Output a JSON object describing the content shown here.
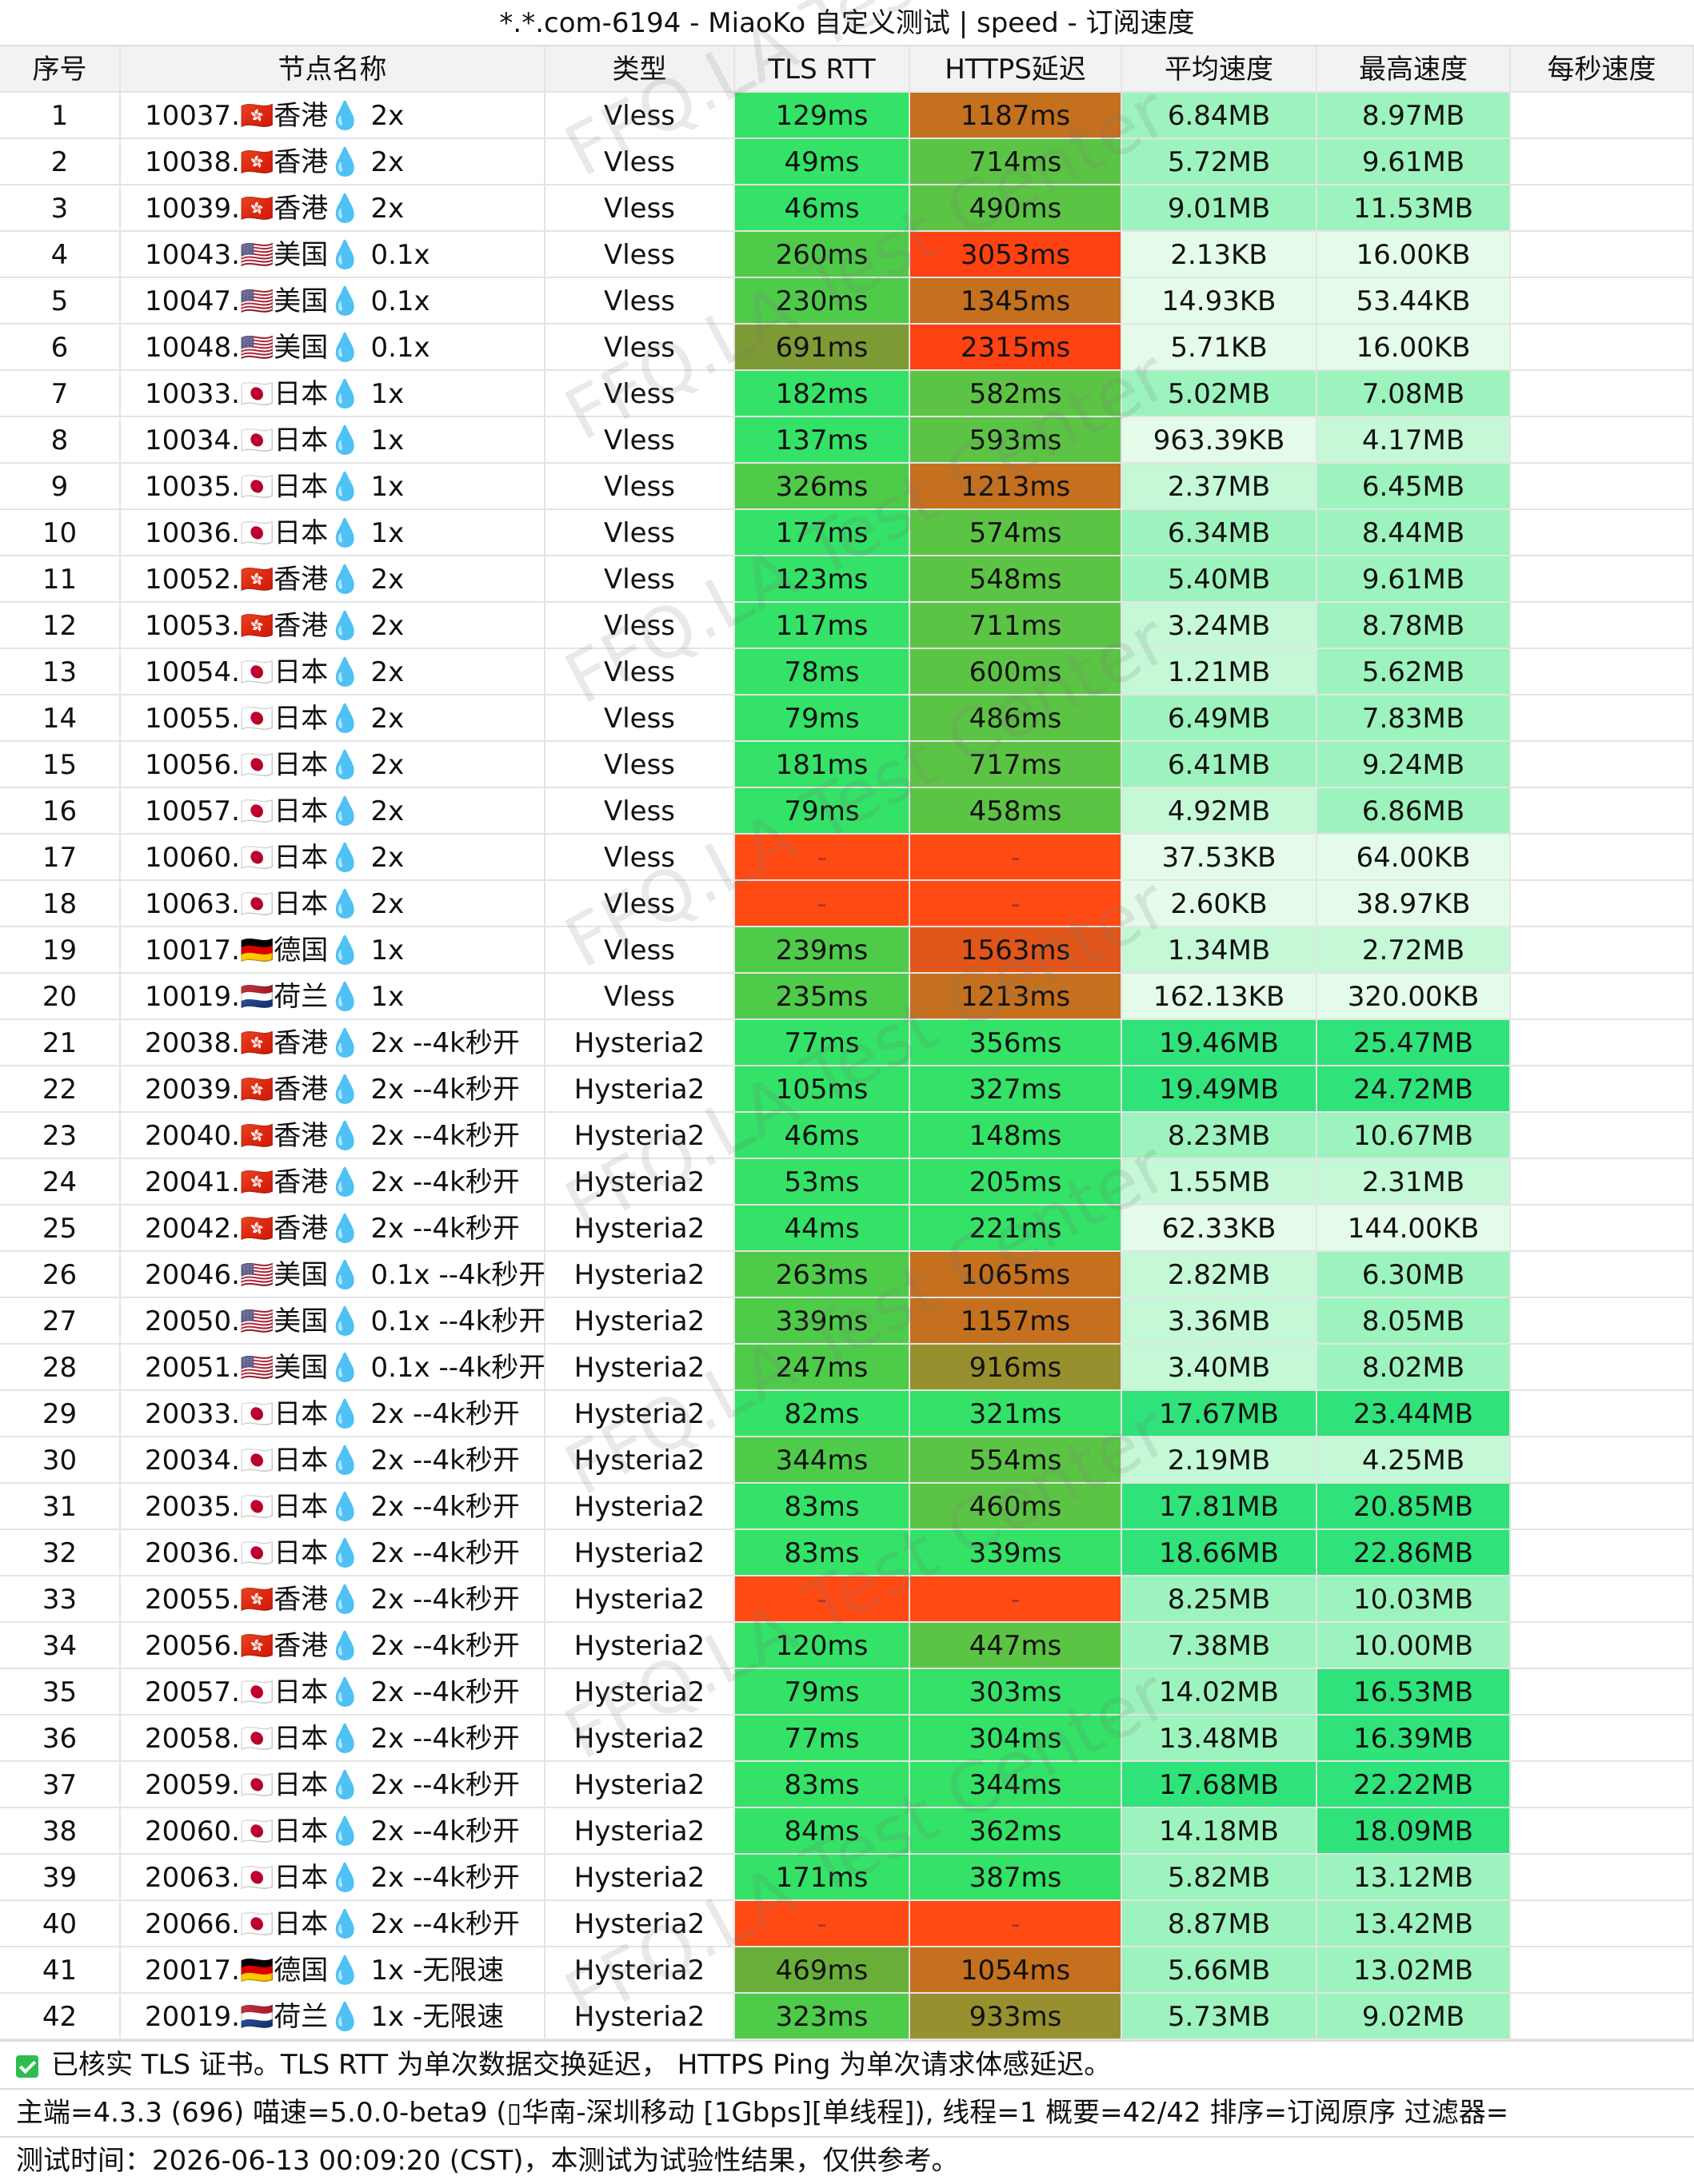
{
  "title": "*.*.com-6194 - MiaoKo 自定义测试 | speed - 订阅速度",
  "watermark": "FFQ.LA Test Center",
  "columns": [
    "序号",
    "节点名称",
    "类型",
    "TLS RTT",
    "HTTPS延迟",
    "平均速度",
    "最高速度",
    "每秒速度"
  ],
  "rows": [
    [
      1,
      "10037.🇭🇰香港💧 2x",
      "Vless",
      "129ms",
      "1187ms",
      "6.84MB",
      "8.97MB"
    ],
    [
      2,
      "10038.🇭🇰香港💧 2x",
      "Vless",
      "49ms",
      "714ms",
      "5.72MB",
      "9.61MB"
    ],
    [
      3,
      "10039.🇭🇰香港💧 2x",
      "Vless",
      "46ms",
      "490ms",
      "9.01MB",
      "11.53MB"
    ],
    [
      4,
      "10043.🇺🇸美国💧 0.1x",
      "Vless",
      "260ms",
      "3053ms",
      "2.13KB",
      "16.00KB"
    ],
    [
      5,
      "10047.🇺🇸美国💧 0.1x",
      "Vless",
      "230ms",
      "1345ms",
      "14.93KB",
      "53.44KB"
    ],
    [
      6,
      "10048.🇺🇸美国💧 0.1x",
      "Vless",
      "691ms",
      "2315ms",
      "5.71KB",
      "16.00KB"
    ],
    [
      7,
      "10033.🇯🇵日本💧 1x",
      "Vless",
      "182ms",
      "582ms",
      "5.02MB",
      "7.08MB"
    ],
    [
      8,
      "10034.🇯🇵日本💧 1x",
      "Vless",
      "137ms",
      "593ms",
      "963.39KB",
      "4.17MB"
    ],
    [
      9,
      "10035.🇯🇵日本💧 1x",
      "Vless",
      "326ms",
      "1213ms",
      "2.37MB",
      "6.45MB"
    ],
    [
      10,
      "10036.🇯🇵日本💧 1x",
      "Vless",
      "177ms",
      "574ms",
      "6.34MB",
      "8.44MB"
    ],
    [
      11,
      "10052.🇭🇰香港💧 2x",
      "Vless",
      "123ms",
      "548ms",
      "5.40MB",
      "9.61MB"
    ],
    [
      12,
      "10053.🇭🇰香港💧 2x",
      "Vless",
      "117ms",
      "711ms",
      "3.24MB",
      "8.78MB"
    ],
    [
      13,
      "10054.🇯🇵日本💧 2x",
      "Vless",
      "78ms",
      "600ms",
      "1.21MB",
      "5.62MB"
    ],
    [
      14,
      "10055.🇯🇵日本💧 2x",
      "Vless",
      "79ms",
      "486ms",
      "6.49MB",
      "7.83MB"
    ],
    [
      15,
      "10056.🇯🇵日本💧 2x",
      "Vless",
      "181ms",
      "717ms",
      "6.41MB",
      "9.24MB"
    ],
    [
      16,
      "10057.🇯🇵日本💧 2x",
      "Vless",
      "79ms",
      "458ms",
      "4.92MB",
      "6.86MB"
    ],
    [
      17,
      "10060.🇯🇵日本💧 2x",
      "Vless",
      "-",
      "-",
      "37.53KB",
      "64.00KB"
    ],
    [
      18,
      "10063.🇯🇵日本💧 2x",
      "Vless",
      "-",
      "-",
      "2.60KB",
      "38.97KB"
    ],
    [
      19,
      "10017.🇩🇪德国💧 1x",
      "Vless",
      "239ms",
      "1563ms",
      "1.34MB",
      "2.72MB"
    ],
    [
      20,
      "10019.🇳🇱荷兰💧 1x",
      "Vless",
      "235ms",
      "1213ms",
      "162.13KB",
      "320.00KB"
    ],
    [
      21,
      "20038.🇭🇰香港💧 2x --4k秒开",
      "Hysteria2",
      "77ms",
      "356ms",
      "19.46MB",
      "25.47MB"
    ],
    [
      22,
      "20039.🇭🇰香港💧 2x --4k秒开",
      "Hysteria2",
      "105ms",
      "327ms",
      "19.49MB",
      "24.72MB"
    ],
    [
      23,
      "20040.🇭🇰香港💧 2x --4k秒开",
      "Hysteria2",
      "46ms",
      "148ms",
      "8.23MB",
      "10.67MB"
    ],
    [
      24,
      "20041.🇭🇰香港💧 2x --4k秒开",
      "Hysteria2",
      "53ms",
      "205ms",
      "1.55MB",
      "2.31MB"
    ],
    [
      25,
      "20042.🇭🇰香港💧 2x --4k秒开",
      "Hysteria2",
      "44ms",
      "221ms",
      "62.33KB",
      "144.00KB"
    ],
    [
      26,
      "20046.🇺🇸美国💧 0.1x --4k秒开",
      "Hysteria2",
      "263ms",
      "1065ms",
      "2.82MB",
      "6.30MB"
    ],
    [
      27,
      "20050.🇺🇸美国💧 0.1x --4k秒开",
      "Hysteria2",
      "339ms",
      "1157ms",
      "3.36MB",
      "8.05MB"
    ],
    [
      28,
      "20051.🇺🇸美国💧 0.1x --4k秒开",
      "Hysteria2",
      "247ms",
      "916ms",
      "3.40MB",
      "8.02MB"
    ],
    [
      29,
      "20033.🇯🇵日本💧 2x --4k秒开",
      "Hysteria2",
      "82ms",
      "321ms",
      "17.67MB",
      "23.44MB"
    ],
    [
      30,
      "20034.🇯🇵日本💧 2x --4k秒开",
      "Hysteria2",
      "344ms",
      "554ms",
      "2.19MB",
      "4.25MB"
    ],
    [
      31,
      "20035.🇯🇵日本💧 2x --4k秒开",
      "Hysteria2",
      "83ms",
      "460ms",
      "17.81MB",
      "20.85MB"
    ],
    [
      32,
      "20036.🇯🇵日本💧 2x --4k秒开",
      "Hysteria2",
      "83ms",
      "339ms",
      "18.66MB",
      "22.86MB"
    ],
    [
      33,
      "20055.🇭🇰香港💧 2x --4k秒开",
      "Hysteria2",
      "-",
      "-",
      "8.25MB",
      "10.03MB"
    ],
    [
      34,
      "20056.🇭🇰香港💧 2x --4k秒开",
      "Hysteria2",
      "120ms",
      "447ms",
      "7.38MB",
      "10.00MB"
    ],
    [
      35,
      "20057.🇯🇵日本💧 2x --4k秒开",
      "Hysteria2",
      "79ms",
      "303ms",
      "14.02MB",
      "16.53MB"
    ],
    [
      36,
      "20058.🇯🇵日本💧 2x --4k秒开",
      "Hysteria2",
      "77ms",
      "304ms",
      "13.48MB",
      "16.39MB"
    ],
    [
      37,
      "20059.🇯🇵日本💧 2x --4k秒开",
      "Hysteria2",
      "83ms",
      "344ms",
      "17.68MB",
      "22.22MB"
    ],
    [
      38,
      "20060.🇯🇵日本💧 2x --4k秒开",
      "Hysteria2",
      "84ms",
      "362ms",
      "14.18MB",
      "18.09MB"
    ],
    [
      39,
      "20063.🇯🇵日本💧 2x --4k秒开",
      "Hysteria2",
      "171ms",
      "387ms",
      "5.82MB",
      "13.12MB"
    ],
    [
      40,
      "20066.🇯🇵日本💧 2x --4k秒开",
      "Hysteria2",
      "-",
      "-",
      "8.87MB",
      "13.42MB"
    ],
    [
      41,
      "20017.🇩🇪德国💧 1x -无限速",
      "Hysteria2",
      "469ms",
      "1054ms",
      "5.66MB",
      "13.02MB"
    ],
    [
      42,
      "20019.🇳🇱荷兰💧 1x -无限速",
      "Hysteria2",
      "323ms",
      "933ms",
      "5.73MB",
      "9.02MB"
    ]
  ],
  "footer": [
    "已核实 TLS 证书。TLS RTT 为单次数据交换延迟， HTTPS Ping 为单次请求体感延迟。",
    "主端=4.3.3 (696) 喵速=5.0.0-beta9 (▯华南-深圳移动 [1Gbps][单线程]), 线程=1 概要=42/42 排序=订阅原序 过滤器=",
    "测试时间：2026-06-13 00:09:20 (CST)，本测试为试验性结果，仅供参考。"
  ]
}
